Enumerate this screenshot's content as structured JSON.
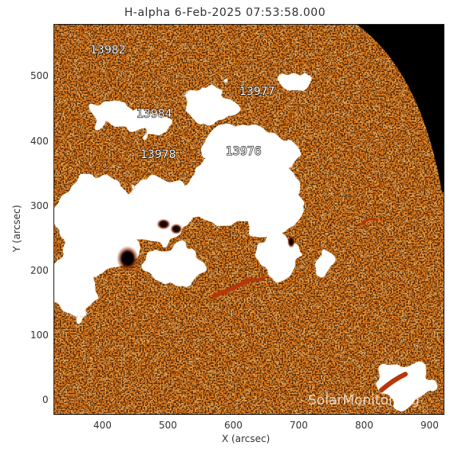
{
  "title": "H-alpha   6-Feb-2025 07:53:58.000",
  "x_axis": {
    "label": "X (arcsec)",
    "ticks": [
      "400",
      "500",
      "600",
      "700",
      "800",
      "900"
    ]
  },
  "y_axis": {
    "label": "Y (arcsec)",
    "ticks": [
      "0",
      "100",
      "200",
      "300",
      "400",
      "500"
    ]
  },
  "active_regions": [
    "13982",
    "13977",
    "13984",
    "13978",
    "13976"
  ],
  "watermark": "SolarMonitor.org",
  "colors": {
    "background_chromosphere": "#e3781f",
    "plage": "#ffffff",
    "space": "#000000",
    "sunspot": "#2a0a00"
  }
}
